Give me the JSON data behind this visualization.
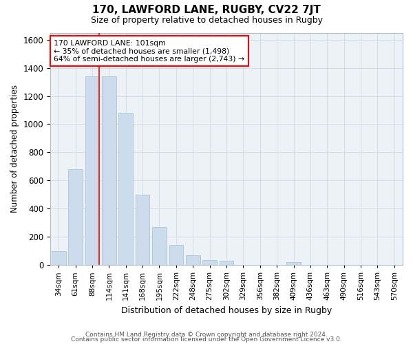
{
  "title1": "170, LAWFORD LANE, RUGBY, CV22 7JT",
  "title2": "Size of property relative to detached houses in Rugby",
  "xlabel": "Distribution of detached houses by size in Rugby",
  "ylabel": "Number of detached properties",
  "categories": [
    "34sqm",
    "61sqm",
    "88sqm",
    "114sqm",
    "141sqm",
    "168sqm",
    "195sqm",
    "222sqm",
    "248sqm",
    "275sqm",
    "302sqm",
    "329sqm",
    "356sqm",
    "382sqm",
    "409sqm",
    "436sqm",
    "463sqm",
    "490sqm",
    "516sqm",
    "543sqm",
    "570sqm"
  ],
  "values": [
    100,
    680,
    1340,
    1340,
    1080,
    500,
    270,
    140,
    70,
    35,
    30,
    0,
    0,
    0,
    20,
    0,
    0,
    0,
    0,
    0,
    0
  ],
  "bar_color": "#ccdcec",
  "bar_edge_color": "#aac4d8",
  "grid_color": "#d4dce8",
  "annotation_line1": "170 LAWFORD LANE: 101sqm",
  "annotation_line2": "← 35% of detached houses are smaller (1,498)",
  "annotation_line3": "64% of semi-detached houses are larger (2,743) →",
  "ylim": [
    0,
    1650
  ],
  "yticks": [
    0,
    200,
    400,
    600,
    800,
    1000,
    1200,
    1400,
    1600
  ],
  "footer1": "Contains HM Land Registry data © Crown copyright and database right 2024.",
  "footer2": "Contains public sector information licensed under the Open Government Licence v3.0.",
  "background_color": "#edf2f7",
  "title1_fontsize": 11,
  "title2_fontsize": 9
}
